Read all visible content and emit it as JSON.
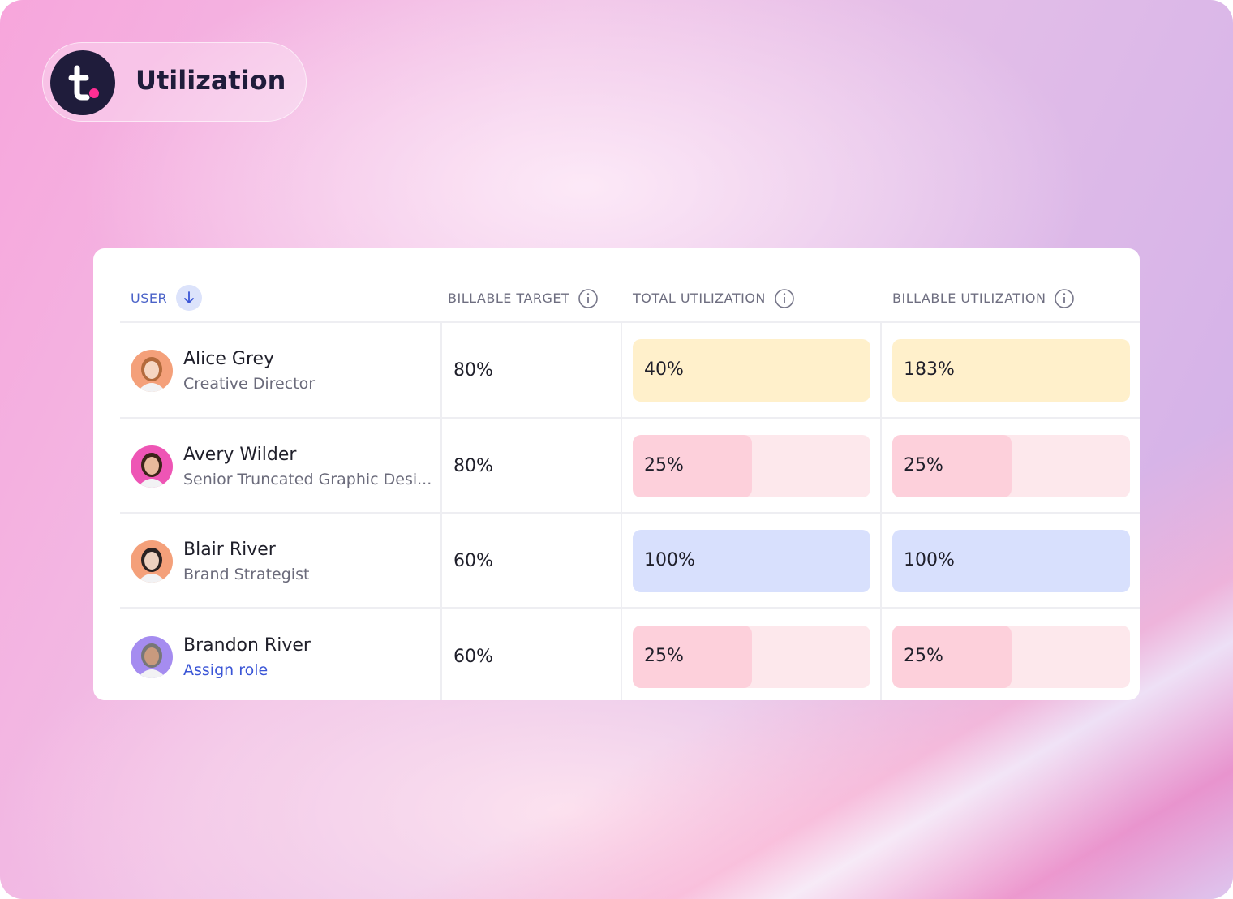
{
  "header": {
    "title": "Utilization"
  },
  "table": {
    "columns": [
      "USER",
      "BILLABLE TARGET",
      "TOTAL UTILIZATION",
      "BILLABLE UTILIZATION"
    ],
    "rows": [
      {
        "name": "Alice Grey",
        "role": "Creative Director",
        "target": "80%",
        "total": {
          "text": "40%",
          "color": "#fff0cb"
        },
        "billable": {
          "text": "183%",
          "color": "#fff0cb"
        }
      },
      {
        "name": "Avery Wilder",
        "role": "Senior Truncated Graphic Desi...",
        "target": "80%",
        "total": {
          "text": "25%",
          "color": "#fdd0db",
          "track": "#fde8ec"
        },
        "billable": {
          "text": "25%",
          "color": "#fdd0db",
          "track": "#fde8ec"
        }
      },
      {
        "name": "Blair River",
        "role": "Brand Strategist",
        "target": "60%",
        "total": {
          "text": "100%",
          "color": "#d8e0fd"
        },
        "billable": {
          "text": "100%",
          "color": "#d8e0fd"
        }
      },
      {
        "name": "Brandon River",
        "action": "Assign role",
        "target": "60%",
        "total": {
          "text": "25%",
          "color": "#fdd0db",
          "track": "#fde8ec"
        },
        "billable": {
          "text": "25%",
          "color": "#fdd0db",
          "track": "#fde8ec"
        }
      }
    ]
  }
}
